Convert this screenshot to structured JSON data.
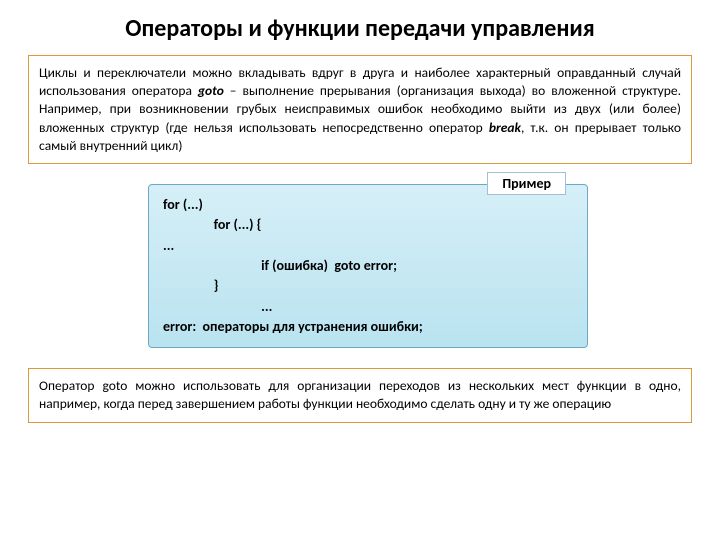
{
  "title": "Операторы и функции передачи управления",
  "box1": {
    "text_parts": [
      "Циклы и переключатели можно вкладывать вдруг в друга и наиболее характерный оправданный случай использования оператора ",
      "goto",
      " – выполнение прерывания (организация выхода) во вложенной структуре. Например, при возникновении грубых неисправимых ошибок необходимо выйти из двух (или более) вложенных структур (где нельзя использовать непосредственно оператор ",
      "break",
      ", т.к. он прерывает только самый внутренний цикл)"
    ]
  },
  "example_label": "Пример",
  "code": [
    "for (...)",
    "                for (...) {",
    "...",
    "                               if (ошибка)  goto error;",
    "                }",
    "                               ...",
    "error:  операторы для устранения ошибки;"
  ],
  "box2": {
    "text_parts": [
      "Оператор ",
      "goto",
      " можно использовать для организации переходов из нескольких мест функции в одно, например, когда перед завершением работы функции необходимо сделать одну и ту же операцию"
    ]
  },
  "colors": {
    "border_orange": "#d99a3a",
    "code_bg_top": "#d6eff7",
    "code_bg_bottom": "#b9e3f0",
    "code_border": "#6ba9c7"
  }
}
